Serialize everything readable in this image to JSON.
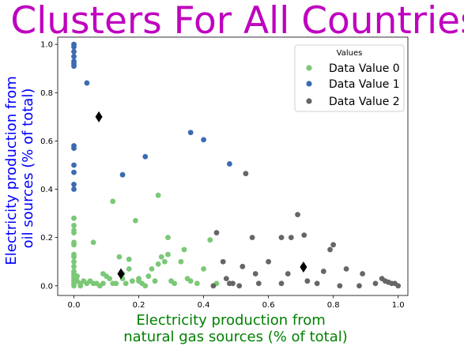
{
  "chart_data": {
    "type": "scatter",
    "title": "Clusters For All Countries",
    "title_color": "#bf00bf",
    "xlabel_lines": [
      "Electricity production from",
      "natural gas sources (% of total)"
    ],
    "xlabel_color": "#008000",
    "ylabel_lines": [
      "Electricity production from",
      "oil sources (% of total)"
    ],
    "ylabel_color": "#0000ff",
    "xlim": [
      -0.05,
      1.03
    ],
    "ylim": [
      -0.04,
      1.03
    ],
    "xticks": [
      "0.0",
      "0.2",
      "0.4",
      "0.6",
      "0.8",
      "1.0"
    ],
    "yticks": [
      "0.0",
      "0.2",
      "0.4",
      "0.6",
      "0.8",
      "1.0"
    ],
    "grid": false,
    "legend": {
      "title": "Values",
      "placement": "top-right"
    },
    "series": [
      {
        "name": "Data Value 0",
        "color": "#7bc876",
        "points": [
          [
            0,
            0.28
          ],
          [
            0,
            0.25
          ],
          [
            0,
            0.23
          ],
          [
            0,
            0.22
          ],
          [
            0,
            0.18
          ],
          [
            0,
            0.17
          ],
          [
            0,
            0.13
          ],
          [
            0,
            0.12
          ],
          [
            0,
            0.1
          ],
          [
            0,
            0.08
          ],
          [
            0,
            0.06
          ],
          [
            0,
            0.05
          ],
          [
            0,
            0.04
          ],
          [
            0,
            0.03
          ],
          [
            0,
            0.02
          ],
          [
            0,
            0.01
          ],
          [
            0,
            0.0
          ],
          [
            0.01,
            0.04
          ],
          [
            0.01,
            0.02
          ],
          [
            0.02,
            0.01
          ],
          [
            0.02,
            0.0
          ],
          [
            0.03,
            0.02
          ],
          [
            0.04,
            0.01
          ],
          [
            0.05,
            0.02
          ],
          [
            0.06,
            0.18
          ],
          [
            0.06,
            0.01
          ],
          [
            0.07,
            0.01
          ],
          [
            0.08,
            0.0
          ],
          [
            0.09,
            0.01
          ],
          [
            0.09,
            0.05
          ],
          [
            0.1,
            0.04
          ],
          [
            0.11,
            0.03
          ],
          [
            0.12,
            0.35
          ],
          [
            0.12,
            0.01
          ],
          [
            0.13,
            0.01
          ],
          [
            0.14,
            0.12
          ],
          [
            0.15,
            0.03
          ],
          [
            0.16,
            0.01
          ],
          [
            0.17,
            0.11
          ],
          [
            0.17,
            0.07
          ],
          [
            0.18,
            0.02
          ],
          [
            0.19,
            0.27
          ],
          [
            0.2,
            0.02
          ],
          [
            0.21,
            0.01
          ],
          [
            0.22,
            0.0
          ],
          [
            0.23,
            0.04
          ],
          [
            0.24,
            0.07
          ],
          [
            0.25,
            0.02
          ],
          [
            0.26,
            0.375
          ],
          [
            0.26,
            0.09
          ],
          [
            0.27,
            0.12
          ],
          [
            0.28,
            0.1
          ],
          [
            0.29,
            0.13
          ],
          [
            0.29,
            0.2
          ],
          [
            0.3,
            0.02
          ],
          [
            0.31,
            0.01
          ],
          [
            0.33,
            0.1
          ],
          [
            0.34,
            0.15
          ],
          [
            0.35,
            0.03
          ],
          [
            0.36,
            0.02
          ],
          [
            0.38,
            0.01
          ],
          [
            0.4,
            0.07
          ],
          [
            0.42,
            0.19
          ],
          [
            0.44,
            0.01
          ],
          [
            0.15,
            0.05
          ],
          [
            0.2,
            0.03
          ]
        ]
      },
      {
        "name": "Data Value 1",
        "color": "#3b6bb1",
        "points": [
          [
            0,
            1.0
          ],
          [
            0,
            0.99
          ],
          [
            0,
            0.97
          ],
          [
            0,
            0.95
          ],
          [
            0,
            0.93
          ],
          [
            0,
            0.92
          ],
          [
            0,
            0.91
          ],
          [
            0,
            0.58
          ],
          [
            0,
            0.57
          ],
          [
            0,
            0.5
          ],
          [
            0,
            0.47
          ],
          [
            0,
            0.42
          ],
          [
            0,
            0.4
          ],
          [
            0.04,
            0.84
          ],
          [
            0.15,
            0.46
          ],
          [
            0.22,
            0.535
          ],
          [
            0.36,
            0.635
          ],
          [
            0.4,
            0.605
          ],
          [
            0.48,
            0.505
          ]
        ]
      },
      {
        "name": "Data Value 2",
        "color": "#666666",
        "points": [
          [
            0.44,
            0.22
          ],
          [
            0.46,
            0.1
          ],
          [
            0.47,
            0.03
          ],
          [
            0.49,
            0.01
          ],
          [
            0.51,
            0.0
          ],
          [
            0.52,
            0.08
          ],
          [
            0.53,
            0.465
          ],
          [
            0.55,
            0.2
          ],
          [
            0.56,
            0.05
          ],
          [
            0.6,
            0.1
          ],
          [
            0.64,
            0.01
          ],
          [
            0.64,
            0.2
          ],
          [
            0.66,
            0.05
          ],
          [
            0.67,
            0.2
          ],
          [
            0.69,
            0.295
          ],
          [
            0.71,
            0.21
          ],
          [
            0.72,
            0.02
          ],
          [
            0.75,
            0.01
          ],
          [
            0.77,
            0.06
          ],
          [
            0.79,
            0.15
          ],
          [
            0.8,
            0.17
          ],
          [
            0.82,
            0.0
          ],
          [
            0.84,
            0.07
          ],
          [
            0.88,
            0.0
          ],
          [
            0.89,
            0.05
          ],
          [
            0.93,
            0.01
          ],
          [
            0.95,
            0.03
          ],
          [
            0.96,
            0.02
          ],
          [
            0.97,
            0.015
          ],
          [
            0.98,
            0.01
          ],
          [
            0.99,
            0.01
          ],
          [
            1.0,
            0.0
          ],
          [
            0.43,
            0.0
          ],
          [
            0.48,
            0.01
          ],
          [
            0.57,
            0.01
          ]
        ]
      }
    ],
    "centroids": {
      "color": "#000000",
      "marker": "diamond",
      "points": [
        [
          0.077,
          0.7
        ],
        [
          0.145,
          0.05
        ],
        [
          0.708,
          0.078
        ]
      ]
    }
  }
}
